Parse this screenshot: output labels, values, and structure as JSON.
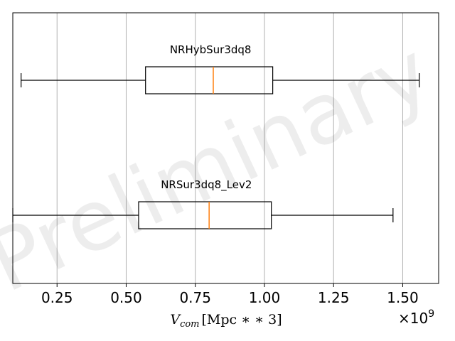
{
  "chart_data": {
    "type": "boxplot",
    "orientation": "horizontal",
    "xlabel": "V_com [Mpc**3]",
    "xlabel_parts": {
      "symbol": "V",
      "subscript": "com",
      "unit": "[Mpc ∗ ∗ 3]"
    },
    "x_scale_factor": "×10^9",
    "x_offset_parts": {
      "base": "×10",
      "exponent": "9"
    },
    "xlim": [
      0.09,
      1.63
    ],
    "xticks": [
      0.25,
      0.5,
      0.75,
      1.0,
      1.25,
      1.5
    ],
    "xtick_labels": [
      "0.25",
      "0.50",
      "0.75",
      "1.00",
      "1.25",
      "1.50"
    ],
    "grid": "x-axis vertical lines",
    "watermark": "Preliminary",
    "series": [
      {
        "name": "NRHybSur3dq8",
        "whisker_low": 0.12,
        "q1": 0.57,
        "median": 0.815,
        "q3": 1.03,
        "whisker_high": 1.56
      },
      {
        "name": "NRSur3dq8_Lev2",
        "whisker_low": 0.09,
        "q1": 0.545,
        "median": 0.8,
        "q3": 1.025,
        "whisker_high": 1.465
      }
    ],
    "colors": {
      "box": "#000000",
      "median": "#ff7f0e",
      "grid": "#b0b0b0"
    }
  }
}
